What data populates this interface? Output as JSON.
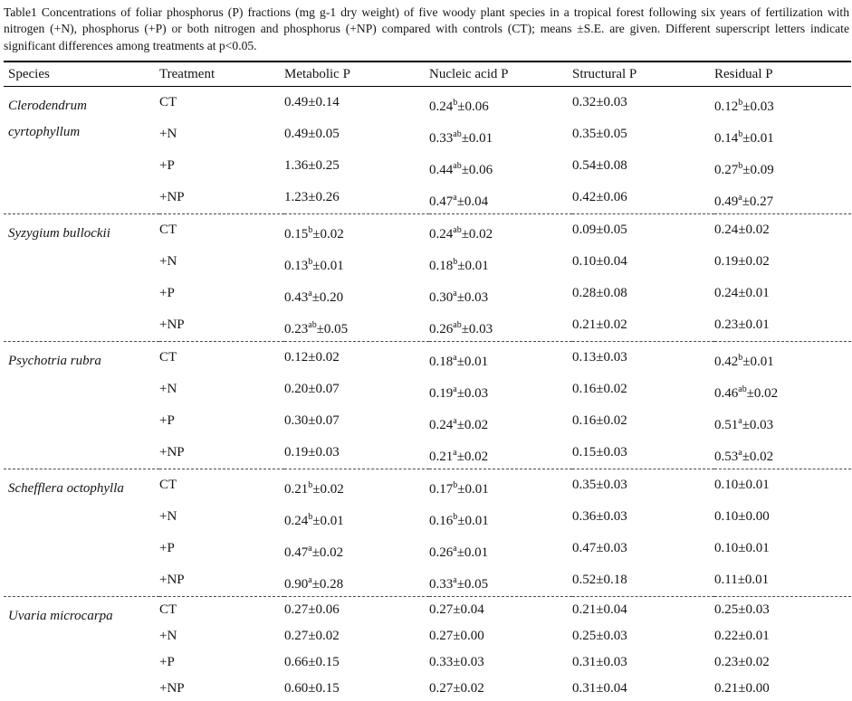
{
  "caption": "Table1 Concentrations of foliar phosphorus (P) fractions (mg g-1 dry weight) of five woody plant species in a tropical forest following six years of fertilization with nitrogen (+N), phosphorus (+P) or both nitrogen and phosphorus (+NP) compared with controls (CT); means ±S.E. are given. Different superscript letters indicate significant differences among treatments at p<0.05.",
  "table": {
    "columns": [
      "Species",
      "Treatment",
      "Metabolic P",
      "Nucleic acid P",
      "Structural P",
      "Residual P"
    ],
    "superscript_note": "caret notation ^a ^b ^ab marks superscript significance letters",
    "species_blocks": [
      {
        "species": "Clerodendrum cyrtophyllum",
        "rows": [
          {
            "treatment": "CT",
            "values": [
              "0.49±0.14",
              "0.24^b±0.06",
              "0.32±0.03",
              "0.12^b±0.03"
            ]
          },
          {
            "treatment": "+N",
            "values": [
              "0.49±0.05",
              "0.33^ab±0.01",
              "0.35±0.05",
              "0.14^b±0.01"
            ]
          },
          {
            "treatment": "+P",
            "values": [
              "1.36±0.25",
              "0.44^ab±0.06",
              "0.54±0.08",
              "0.27^b±0.09"
            ]
          },
          {
            "treatment": "+NP",
            "values": [
              "1.23±0.26",
              "0.47^a±0.04",
              "0.42±0.06",
              "0.49^a±0.27"
            ]
          }
        ]
      },
      {
        "species": "Syzygium bullockii",
        "rows": [
          {
            "treatment": "CT",
            "values": [
              "0.15^b±0.02",
              "0.24^ab±0.02",
              "0.09±0.05",
              "0.24±0.02"
            ]
          },
          {
            "treatment": "+N",
            "values": [
              "0.13^b±0.01",
              "0.18^b±0.01",
              "0.10±0.04",
              "0.19±0.02"
            ]
          },
          {
            "treatment": "+P",
            "values": [
              "0.43^a±0.20",
              "0.30^a±0.03",
              "0.28±0.08",
              "0.24±0.01"
            ]
          },
          {
            "treatment": "+NP",
            "values": [
              "0.23^ab±0.05",
              "0.26^ab±0.03",
              "0.21±0.02",
              "0.23±0.01"
            ]
          }
        ]
      },
      {
        "species": "Psychotria rubra",
        "rows": [
          {
            "treatment": "CT",
            "values": [
              "0.12±0.02",
              "0.18^a±0.01",
              "0.13±0.03",
              "0.42^b±0.01"
            ]
          },
          {
            "treatment": "+N",
            "values": [
              "0.20±0.07",
              "0.19^a±0.03",
              "0.16±0.02",
              "0.46^ab±0.02"
            ]
          },
          {
            "treatment": "+P",
            "values": [
              "0.30±0.07",
              "0.24^a±0.02",
              "0.16±0.02",
              "0.51^a±0.03"
            ]
          },
          {
            "treatment": "+NP",
            "values": [
              "0.19±0.03",
              "0.21^a±0.02",
              "0.15±0.03",
              "0.53^a±0.02"
            ]
          }
        ]
      },
      {
        "species": "Schefflera octophylla",
        "rows": [
          {
            "treatment": "CT",
            "values": [
              "0.21^b±0.02",
              "0.17^b±0.01",
              "0.35±0.03",
              "0.10±0.01"
            ]
          },
          {
            "treatment": "+N",
            "values": [
              "0.24^b±0.01",
              "0.16^b±0.01",
              "0.36±0.03",
              "0.10±0.00"
            ]
          },
          {
            "treatment": "+P",
            "values": [
              "0.47^a±0.02",
              "0.26^a±0.01",
              "0.47±0.03",
              "0.10±0.01"
            ]
          },
          {
            "treatment": "+NP",
            "values": [
              "0.90^a±0.28",
              "0.33^a±0.05",
              "0.52±0.18",
              "0.11±0.01"
            ]
          }
        ]
      },
      {
        "species": "Uvaria microcarpa",
        "rows": [
          {
            "treatment": "CT",
            "values": [
              "0.27±0.06",
              "0.27±0.04",
              "0.21±0.04",
              "0.25±0.03"
            ]
          },
          {
            "treatment": "+N",
            "values": [
              "0.27±0.02",
              "0.27±0.00",
              "0.25±0.03",
              "0.22±0.01"
            ]
          },
          {
            "treatment": "+P",
            "values": [
              "0.66±0.15",
              "0.33±0.03",
              "0.31±0.03",
              "0.23±0.02"
            ]
          },
          {
            "treatment": "+NP",
            "values": [
              "0.60±0.15",
              "0.27±0.02",
              "0.31±0.04",
              "0.21±0.00"
            ]
          }
        ]
      }
    ]
  }
}
